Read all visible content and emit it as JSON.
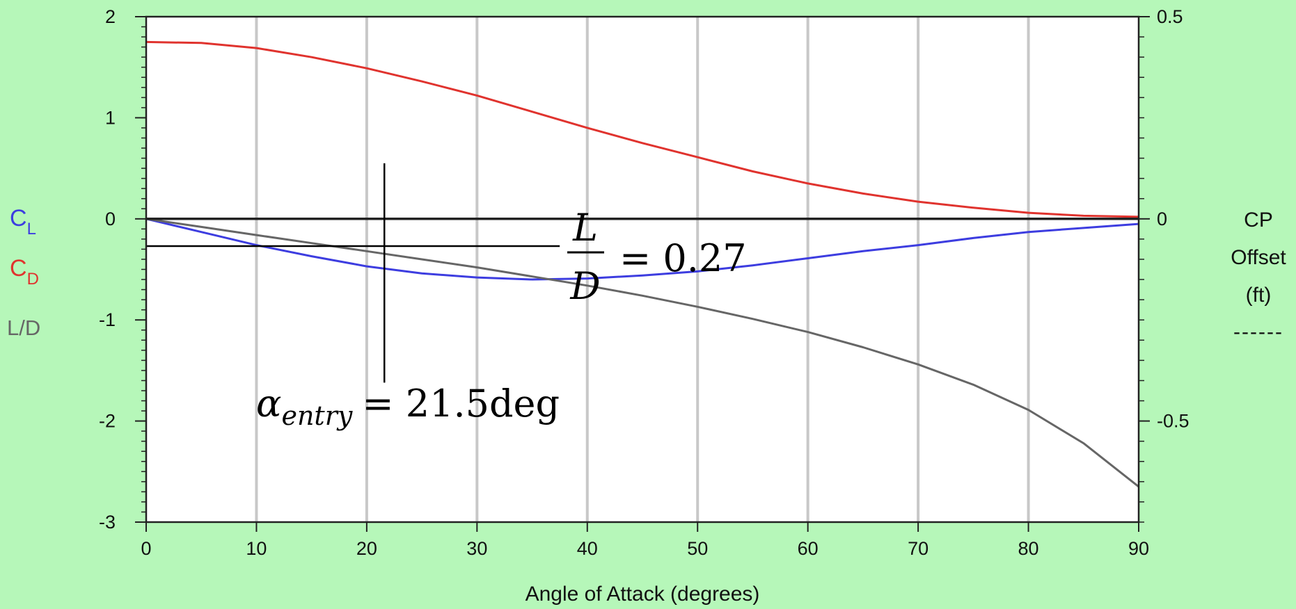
{
  "chart_data": {
    "type": "line",
    "xlabel": "Angle of Attack (degrees)",
    "xlim": [
      0,
      90
    ],
    "x_ticks": [
      0,
      10,
      20,
      30,
      40,
      50,
      60,
      70,
      80,
      90
    ],
    "ylim": [
      -3,
      2
    ],
    "y_ticks": [
      -3,
      -2,
      -1,
      0,
      1,
      2
    ],
    "y2lim": [
      -0.75,
      0.5
    ],
    "y2_ticks": [
      -0.5,
      0,
      0.5
    ],
    "y2_tick_labels": [
      "-0.5",
      "0",
      "0.5"
    ],
    "vertical_grid": true,
    "left_legend": [
      {
        "main": "C",
        "sub": "L",
        "color": "#3d3de0"
      },
      {
        "main": "C",
        "sub": "D",
        "color": "#e0332e"
      },
      {
        "main": "L/D",
        "sub": "",
        "color": "#666666"
      }
    ],
    "right_label": [
      "CP",
      "Offset",
      "(ft)"
    ],
    "right_dash": "------",
    "series": [
      {
        "color": "#e0332e",
        "x": [
          0,
          5,
          10,
          15,
          20,
          25,
          30,
          35,
          40,
          45,
          50,
          55,
          60,
          65,
          70,
          75,
          80,
          85,
          90
        ],
        "y": [
          1.75,
          1.74,
          1.69,
          1.6,
          1.49,
          1.36,
          1.22,
          1.06,
          0.9,
          0.75,
          0.61,
          0.47,
          0.35,
          0.25,
          0.17,
          0.11,
          0.06,
          0.03,
          0.02
        ]
      },
      {
        "color": "#3d3de0",
        "x": [
          0,
          5,
          10,
          15,
          20,
          25,
          30,
          35,
          40,
          45,
          50,
          55,
          60,
          65,
          70,
          75,
          80,
          85,
          90
        ],
        "y": [
          0,
          -0.13,
          -0.26,
          -0.37,
          -0.47,
          -0.54,
          -0.58,
          -0.6,
          -0.59,
          -0.56,
          -0.52,
          -0.46,
          -0.39,
          -0.32,
          -0.26,
          -0.19,
          -0.13,
          -0.09,
          -0.05
        ]
      },
      {
        "color": "#666666",
        "x": [
          0,
          5,
          10,
          15,
          20,
          25,
          30,
          35,
          40,
          45,
          50,
          55,
          60,
          65,
          70,
          75,
          80,
          85,
          90
        ],
        "y": [
          0,
          -0.08,
          -0.16,
          -0.24,
          -0.32,
          -0.4,
          -0.48,
          -0.57,
          -0.66,
          -0.76,
          -0.87,
          -0.99,
          -1.12,
          -1.27,
          -1.44,
          -1.64,
          -1.89,
          -2.22,
          -2.65
        ]
      },
      {
        "color": "#222222",
        "x": [
          0,
          90
        ],
        "y": [
          0,
          0
        ]
      }
    ],
    "annotations": {
      "ld_line_y": -0.27,
      "ld_line_x_end": 37.5,
      "alpha_x": 21.6,
      "alpha_y_top": 0.55,
      "alpha_y_bottom": -1.62,
      "ld_label": {
        "numerator": "L",
        "denominator": "D",
        "rest": "= 0.27"
      },
      "alpha_label": {
        "symbol": "α",
        "sub": "entry",
        "rest": "= 21.5deg"
      }
    }
  }
}
